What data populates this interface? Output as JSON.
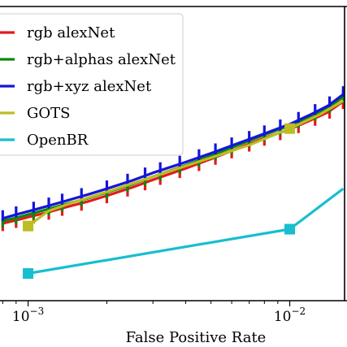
{
  "chart_data": {
    "type": "line",
    "title": "",
    "xlabel": "False Positive Rate",
    "ylabel": "",
    "xscale": "log",
    "xlim": [
      0.00077,
      0.0162
    ],
    "ylim": [
      0.54,
      1.005
    ],
    "x_ticks": [
      {
        "value": 0.001,
        "base": "10",
        "exp": "−3"
      },
      {
        "value": 0.01,
        "base": "10",
        "exp": "−2"
      }
    ],
    "grid": false,
    "legend_position": "top-left",
    "series": [
      {
        "name": "rgb alexNet",
        "color": "#e31a1c",
        "points": [
          [
            0.0008,
            0.662
          ],
          [
            0.0009,
            0.667
          ],
          [
            0.001,
            0.672
          ],
          [
            0.0012,
            0.68
          ],
          [
            0.0014,
            0.688
          ],
          [
            0.0017,
            0.697
          ],
          [
            0.002,
            0.706
          ],
          [
            0.0025,
            0.719
          ],
          [
            0.003,
            0.731
          ],
          [
            0.004,
            0.749
          ],
          [
            0.005,
            0.764
          ],
          [
            0.006,
            0.777
          ],
          [
            0.008,
            0.797
          ],
          [
            0.01,
            0.811
          ],
          [
            0.012,
            0.825
          ],
          [
            0.014,
            0.838
          ],
          [
            0.016,
            0.855
          ]
        ],
        "error_bars": {
          "x": [
            0.0008,
            0.0009,
            0.00105,
            0.0012,
            0.00135,
            0.0016,
            0.002,
            0.0024,
            0.0028,
            0.0032,
            0.0038,
            0.0045,
            0.0052,
            0.006,
            0.007,
            0.008,
            0.0092,
            0.0108,
            0.0125,
            0.0142,
            0.016
          ],
          "down": 0.012,
          "up": 0.005
        }
      },
      {
        "name": "rgb+alphas alexNet",
        "color": "#0b8a0b",
        "points": [
          [
            0.0008,
            0.666
          ],
          [
            0.0009,
            0.671
          ],
          [
            0.001,
            0.676
          ],
          [
            0.0012,
            0.685
          ],
          [
            0.0014,
            0.693
          ],
          [
            0.0017,
            0.702
          ],
          [
            0.002,
            0.711
          ],
          [
            0.0025,
            0.724
          ],
          [
            0.003,
            0.736
          ],
          [
            0.004,
            0.754
          ],
          [
            0.005,
            0.769
          ],
          [
            0.006,
            0.782
          ],
          [
            0.008,
            0.802
          ],
          [
            0.01,
            0.817
          ],
          [
            0.012,
            0.831
          ],
          [
            0.014,
            0.845
          ],
          [
            0.016,
            0.862
          ]
        ],
        "error_bars": {
          "x": [
            0.0008,
            0.0009,
            0.00105,
            0.0012,
            0.00135,
            0.0016,
            0.002,
            0.0024,
            0.0028,
            0.0032,
            0.0038,
            0.0045,
            0.0052,
            0.006,
            0.007,
            0.008,
            0.0092,
            0.0108,
            0.0125,
            0.0142,
            0.016
          ],
          "down": 0.01,
          "up": 0.004
        }
      },
      {
        "name": "rgb+xyz alexNet",
        "color": "#1515d8",
        "points": [
          [
            0.0008,
            0.67
          ],
          [
            0.0009,
            0.676
          ],
          [
            0.001,
            0.681
          ],
          [
            0.0012,
            0.69
          ],
          [
            0.0014,
            0.698
          ],
          [
            0.0017,
            0.708
          ],
          [
            0.002,
            0.717
          ],
          [
            0.0025,
            0.73
          ],
          [
            0.003,
            0.742
          ],
          [
            0.004,
            0.759
          ],
          [
            0.005,
            0.773
          ],
          [
            0.006,
            0.785
          ],
          [
            0.008,
            0.804
          ],
          [
            0.01,
            0.819
          ],
          [
            0.012,
            0.834
          ],
          [
            0.014,
            0.848
          ],
          [
            0.016,
            0.866
          ]
        ],
        "error_bars": {
          "x": [
            0.0008,
            0.0009,
            0.00105,
            0.0012,
            0.00135,
            0.0016,
            0.002,
            0.0024,
            0.0028,
            0.0032,
            0.0038,
            0.0045,
            0.0052,
            0.006,
            0.007,
            0.008,
            0.0092,
            0.0108,
            0.0125,
            0.0142,
            0.016
          ],
          "down": 0.004,
          "up": 0.013
        }
      },
      {
        "name": "GOTS",
        "color": "#bcbd22",
        "points": [
          [
            0.001,
            0.658
          ],
          [
            0.0012,
            0.682
          ],
          [
            0.0015,
            0.696
          ],
          [
            0.002,
            0.712
          ],
          [
            0.003,
            0.736
          ],
          [
            0.005,
            0.766
          ],
          [
            0.007,
            0.786
          ],
          [
            0.01,
            0.812
          ],
          [
            0.013,
            0.834
          ],
          [
            0.016,
            0.856
          ]
        ],
        "markers": [
          [
            0.001,
            0.658
          ],
          [
            0.01,
            0.812
          ]
        ]
      },
      {
        "name": "OpenBR",
        "color": "#17becf",
        "points": [
          [
            0.001,
            0.583
          ],
          [
            0.01,
            0.653
          ],
          [
            0.016,
            0.717
          ]
        ],
        "markers": [
          [
            0.001,
            0.583
          ],
          [
            0.01,
            0.653
          ]
        ]
      }
    ]
  }
}
